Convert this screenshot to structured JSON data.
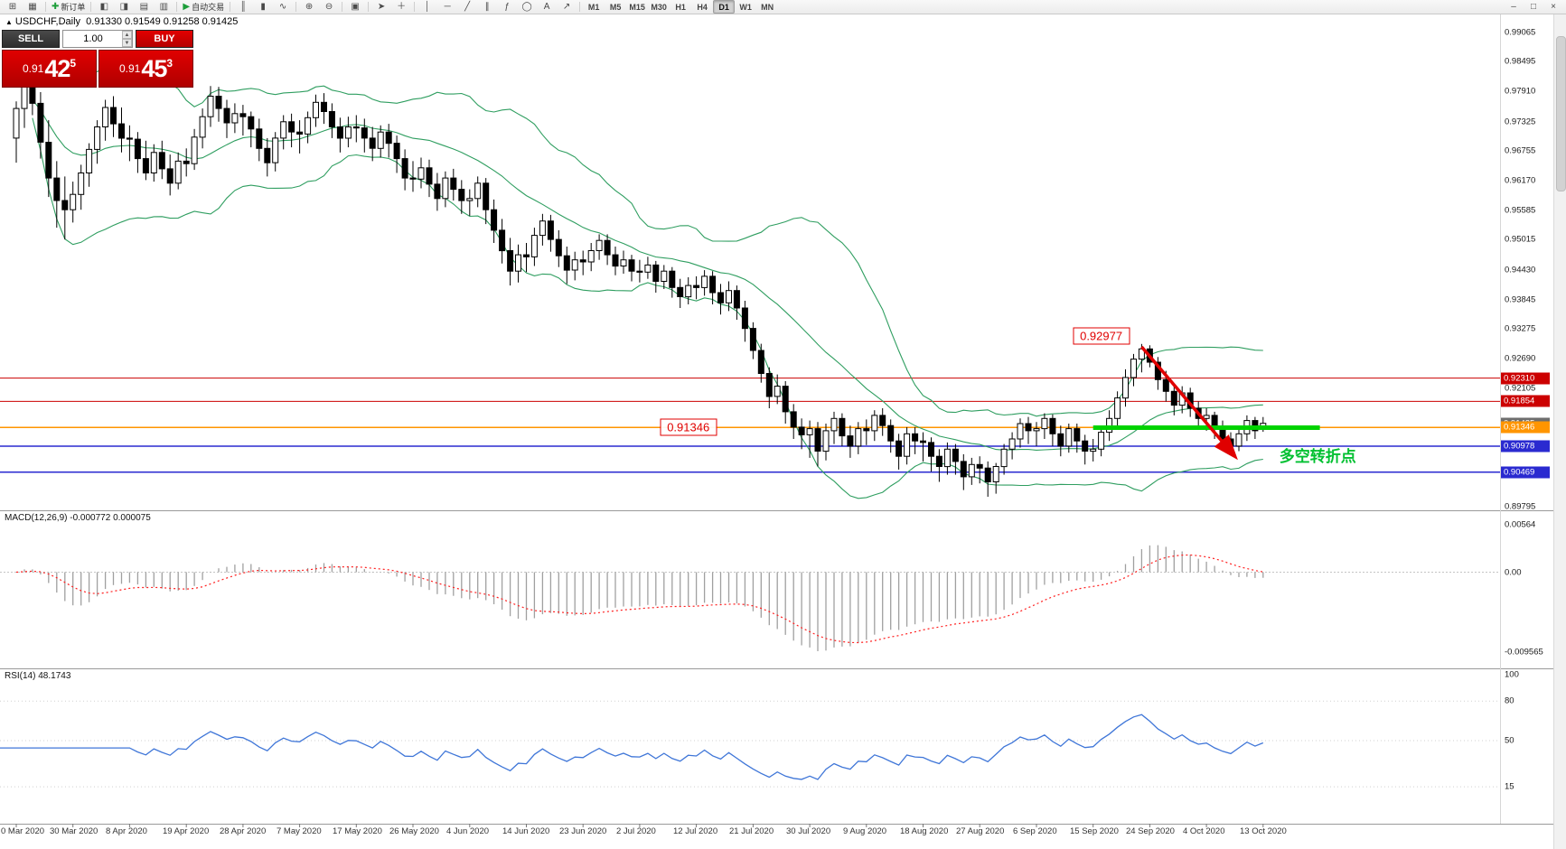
{
  "toolbar": {
    "new_order_label": "新订单",
    "autotrading_label": "自动交易",
    "timeframes": [
      "M1",
      "M5",
      "M15",
      "M30",
      "H1",
      "H4",
      "D1",
      "W1",
      "MN"
    ],
    "active_timeframe": "D1",
    "items": [
      {
        "t": "icon",
        "n": "new-chart-button",
        "g": "⊞"
      },
      {
        "t": "icon",
        "n": "profiles-button",
        "g": "▦"
      },
      {
        "t": "sep"
      },
      {
        "t": "textbtn",
        "n": "new-order-button",
        "g": "✚",
        "label_key": "new_order_label",
        "gcolor": "#1d9e3a"
      },
      {
        "t": "sep"
      },
      {
        "t": "icon",
        "n": "market-watch-button",
        "g": "◧"
      },
      {
        "t": "icon",
        "n": "data-window-button",
        "g": "◨"
      },
      {
        "t": "icon",
        "n": "navigator-button",
        "g": "▤"
      },
      {
        "t": "icon",
        "n": "terminal-button",
        "g": "▥"
      },
      {
        "t": "sep"
      },
      {
        "t": "textbtn",
        "n": "autotrading-button",
        "g": "▶",
        "label_key": "autotrading_label",
        "gcolor": "#1d9e3a"
      },
      {
        "t": "sep"
      },
      {
        "t": "icon",
        "n": "bar-chart-button",
        "g": "║"
      },
      {
        "t": "icon",
        "n": "candlestick-chart-button",
        "g": "▮"
      },
      {
        "t": "icon",
        "n": "line-chart-button",
        "g": "∿"
      },
      {
        "t": "sep"
      },
      {
        "t": "icon",
        "n": "zoom-in-button",
        "g": "⊕"
      },
      {
        "t": "icon",
        "n": "zoom-out-button",
        "g": "⊖"
      },
      {
        "t": "sep"
      },
      {
        "t": "icon",
        "n": "tile-windows-button",
        "g": "▣"
      },
      {
        "t": "sep"
      },
      {
        "t": "icon",
        "n": "cursor-button",
        "g": "➤"
      },
      {
        "t": "icon",
        "n": "crosshair-button",
        "g": "＋"
      },
      {
        "t": "sep"
      },
      {
        "t": "icon",
        "n": "vertical-line-button",
        "g": "│"
      },
      {
        "t": "icon",
        "n": "horizontal-line-button",
        "g": "─"
      },
      {
        "t": "icon",
        "n": "trendline-button",
        "g": "╱"
      },
      {
        "t": "icon",
        "n": "channel-button",
        "g": "∥"
      },
      {
        "t": "icon",
        "n": "fibonacci-button",
        "g": "ƒ"
      },
      {
        "t": "icon",
        "n": "shapes-button",
        "g": "◯"
      },
      {
        "t": "icon",
        "n": "text-tool-button",
        "g": "A"
      },
      {
        "t": "icon",
        "n": "arrows-tool-button",
        "g": "↗"
      },
      {
        "t": "sep"
      },
      {
        "t": "timeframes"
      },
      {
        "t": "spacer"
      },
      {
        "t": "icon",
        "n": "minimize-button",
        "g": "–"
      },
      {
        "t": "icon",
        "n": "restore-button",
        "g": "□"
      },
      {
        "t": "icon",
        "n": "close-button",
        "g": "×"
      }
    ]
  },
  "legend": {
    "symbol": "USDCHF,Daily",
    "ohlc": "0.91330 0.91549 0.91258 0.91425"
  },
  "one_click": {
    "sell_label": "SELL",
    "buy_label": "BUY",
    "volume": "1.00",
    "sell": {
      "prefix": "0.91",
      "main": "42",
      "pip": "5"
    },
    "buy": {
      "prefix": "0.91",
      "main": "45",
      "pip": "3"
    }
  },
  "chart_data": {
    "type": "candlestick",
    "symbol": "USDCHF",
    "period": "Daily",
    "ohlc_display": {
      "open": "0.91330",
      "high": "0.91549",
      "low": "0.91258",
      "close": "0.91425"
    },
    "dates": [
      "0 Mar 2020",
      "30 Mar 2020",
      "8 Apr 2020",
      "19 Apr 2020",
      "28 Apr 2020",
      "7 May 2020",
      "17 May 2020",
      "26 May 2020",
      "4 Jun 2020",
      "14 Jun 2020",
      "23 Jun 2020",
      "2 Jul 2020",
      "12 Jul 2020",
      "21 Jul 2020",
      "30 Jul 2020",
      "9 Aug 2020",
      "18 Aug 2020",
      "27 Aug 2020",
      "6 Sep 2020",
      "15 Sep 2020",
      "24 Sep 2020",
      "4 Oct 2020",
      "13 Oct 2020"
    ],
    "candles_per_label": 7,
    "candles": [
      [
        0.97,
        0.9772,
        0.9652,
        0.9758
      ],
      [
        0.9758,
        0.982,
        0.972,
        0.98
      ],
      [
        0.98,
        0.9822,
        0.9745,
        0.9768
      ],
      [
        0.9768,
        0.979,
        0.966,
        0.9692
      ],
      [
        0.9692,
        0.9735,
        0.9585,
        0.9622
      ],
      [
        0.9622,
        0.9655,
        0.9525,
        0.9578
      ],
      [
        0.9578,
        0.9625,
        0.9502,
        0.956
      ],
      [
        0.956,
        0.9615,
        0.9535,
        0.959
      ],
      [
        0.959,
        0.9648,
        0.956,
        0.9632
      ],
      [
        0.9632,
        0.969,
        0.9605,
        0.9678
      ],
      [
        0.9678,
        0.9735,
        0.965,
        0.9722
      ],
      [
        0.9722,
        0.9775,
        0.9695,
        0.976
      ],
      [
        0.976,
        0.9782,
        0.9702,
        0.9728
      ],
      [
        0.9728,
        0.976,
        0.9672,
        0.97
      ],
      [
        0.97,
        0.9725,
        0.9655,
        0.9698
      ],
      [
        0.9698,
        0.9712,
        0.9632,
        0.966
      ],
      [
        0.966,
        0.9695,
        0.9618,
        0.9632
      ],
      [
        0.9632,
        0.9688,
        0.9615,
        0.9672
      ],
      [
        0.9672,
        0.9695,
        0.962,
        0.964
      ],
      [
        0.964,
        0.9668,
        0.9588,
        0.9612
      ],
      [
        0.9612,
        0.9672,
        0.96,
        0.9655
      ],
      [
        0.9655,
        0.968,
        0.9625,
        0.965
      ],
      [
        0.965,
        0.9718,
        0.9638,
        0.9702
      ],
      [
        0.9702,
        0.9758,
        0.968,
        0.9742
      ],
      [
        0.9742,
        0.9802,
        0.9722,
        0.9782
      ],
      [
        0.9782,
        0.98,
        0.9732,
        0.9758
      ],
      [
        0.9758,
        0.9775,
        0.97,
        0.973
      ],
      [
        0.973,
        0.9768,
        0.971,
        0.9748
      ],
      [
        0.9748,
        0.9765,
        0.9705,
        0.9742
      ],
      [
        0.9742,
        0.9752,
        0.9682,
        0.9718
      ],
      [
        0.9718,
        0.9738,
        0.9655,
        0.968
      ],
      [
        0.968,
        0.97,
        0.9625,
        0.9652
      ],
      [
        0.9652,
        0.9712,
        0.9635,
        0.97
      ],
      [
        0.97,
        0.9745,
        0.9678,
        0.9732
      ],
      [
        0.9732,
        0.9748,
        0.9682,
        0.9712
      ],
      [
        0.9712,
        0.9735,
        0.967,
        0.9708
      ],
      [
        0.9708,
        0.9752,
        0.969,
        0.974
      ],
      [
        0.974,
        0.9785,
        0.9722,
        0.977
      ],
      [
        0.977,
        0.9788,
        0.9728,
        0.9752
      ],
      [
        0.9752,
        0.9768,
        0.97,
        0.9722
      ],
      [
        0.9722,
        0.974,
        0.9672,
        0.97
      ],
      [
        0.97,
        0.9742,
        0.9682,
        0.9722
      ],
      [
        0.9722,
        0.9745,
        0.9692,
        0.972
      ],
      [
        0.972,
        0.9738,
        0.9672,
        0.97
      ],
      [
        0.97,
        0.9722,
        0.9655,
        0.968
      ],
      [
        0.968,
        0.9725,
        0.9662,
        0.9712
      ],
      [
        0.9712,
        0.9728,
        0.9662,
        0.969
      ],
      [
        0.969,
        0.9705,
        0.9632,
        0.966
      ],
      [
        0.966,
        0.9678,
        0.9598,
        0.9622
      ],
      [
        0.9622,
        0.9655,
        0.9595,
        0.962
      ],
      [
        0.962,
        0.9662,
        0.9602,
        0.9642
      ],
      [
        0.9642,
        0.9658,
        0.9585,
        0.961
      ],
      [
        0.961,
        0.9632,
        0.9558,
        0.9582
      ],
      [
        0.9582,
        0.9635,
        0.9565,
        0.9622
      ],
      [
        0.9622,
        0.964,
        0.9578,
        0.96
      ],
      [
        0.96,
        0.9618,
        0.9552,
        0.9578
      ],
      [
        0.9578,
        0.96,
        0.9548,
        0.9582
      ],
      [
        0.9582,
        0.9625,
        0.9565,
        0.9612
      ],
      [
        0.9612,
        0.9622,
        0.9532,
        0.956
      ],
      [
        0.956,
        0.958,
        0.9495,
        0.952
      ],
      [
        0.952,
        0.9542,
        0.9455,
        0.948
      ],
      [
        0.948,
        0.9505,
        0.9412,
        0.944
      ],
      [
        0.944,
        0.9492,
        0.9418,
        0.9472
      ],
      [
        0.9472,
        0.9495,
        0.9438,
        0.9468
      ],
      [
        0.9468,
        0.9525,
        0.945,
        0.951
      ],
      [
        0.951,
        0.9552,
        0.949,
        0.9538
      ],
      [
        0.9538,
        0.955,
        0.9478,
        0.9502
      ],
      [
        0.9502,
        0.952,
        0.9448,
        0.947
      ],
      [
        0.947,
        0.9488,
        0.9415,
        0.9442
      ],
      [
        0.9442,
        0.9478,
        0.9422,
        0.9462
      ],
      [
        0.9462,
        0.948,
        0.9432,
        0.9458
      ],
      [
        0.9458,
        0.9495,
        0.944,
        0.948
      ],
      [
        0.948,
        0.9512,
        0.9462,
        0.95
      ],
      [
        0.95,
        0.9512,
        0.9452,
        0.9472
      ],
      [
        0.9472,
        0.9488,
        0.9432,
        0.945
      ],
      [
        0.945,
        0.948,
        0.9435,
        0.9462
      ],
      [
        0.9462,
        0.9472,
        0.942,
        0.944
      ],
      [
        0.944,
        0.9462,
        0.9418,
        0.9438
      ],
      [
        0.9438,
        0.9468,
        0.9425,
        0.9452
      ],
      [
        0.9452,
        0.946,
        0.9398,
        0.942
      ],
      [
        0.942,
        0.9452,
        0.9405,
        0.944
      ],
      [
        0.944,
        0.9448,
        0.9388,
        0.9408
      ],
      [
        0.9408,
        0.9425,
        0.9368,
        0.939
      ],
      [
        0.939,
        0.9428,
        0.9375,
        0.9412
      ],
      [
        0.9412,
        0.943,
        0.9385,
        0.9408
      ],
      [
        0.9408,
        0.9442,
        0.9392,
        0.943
      ],
      [
        0.943,
        0.944,
        0.9375,
        0.9398
      ],
      [
        0.9398,
        0.9415,
        0.9355,
        0.9378
      ],
      [
        0.9378,
        0.942,
        0.9362,
        0.9402
      ],
      [
        0.9402,
        0.9412,
        0.9345,
        0.9368
      ],
      [
        0.9368,
        0.9382,
        0.9302,
        0.9328
      ],
      [
        0.9328,
        0.934,
        0.9268,
        0.9285
      ],
      [
        0.9285,
        0.9298,
        0.9222,
        0.924
      ],
      [
        0.924,
        0.9252,
        0.9172,
        0.9195
      ],
      [
        0.9195,
        0.9238,
        0.918,
        0.9215
      ],
      [
        0.9215,
        0.9225,
        0.9142,
        0.9165
      ],
      [
        0.9165,
        0.918,
        0.9112,
        0.9135
      ],
      [
        0.9135,
        0.9152,
        0.9092,
        0.912
      ],
      [
        0.912,
        0.9148,
        0.9075,
        0.9132
      ],
      [
        0.9132,
        0.9145,
        0.9058,
        0.9088
      ],
      [
        0.9088,
        0.9142,
        0.907,
        0.9128
      ],
      [
        0.9128,
        0.9165,
        0.9102,
        0.9152
      ],
      [
        0.9152,
        0.9162,
        0.9098,
        0.9118
      ],
      [
        0.9118,
        0.9138,
        0.9075,
        0.9098
      ],
      [
        0.9098,
        0.9145,
        0.9082,
        0.9132
      ],
      [
        0.9132,
        0.915,
        0.91,
        0.9128
      ],
      [
        0.9128,
        0.9168,
        0.9108,
        0.9158
      ],
      [
        0.9158,
        0.9172,
        0.9118,
        0.9138
      ],
      [
        0.9138,
        0.915,
        0.9085,
        0.9108
      ],
      [
        0.9108,
        0.9122,
        0.9052,
        0.9078
      ],
      [
        0.9078,
        0.9135,
        0.9062,
        0.9122
      ],
      [
        0.9122,
        0.9135,
        0.9082,
        0.9108
      ],
      [
        0.9108,
        0.9125,
        0.9068,
        0.9105
      ],
      [
        0.9105,
        0.9115,
        0.9048,
        0.9078
      ],
      [
        0.9078,
        0.9092,
        0.9028,
        0.9058
      ],
      [
        0.9058,
        0.9105,
        0.9042,
        0.9092
      ],
      [
        0.9092,
        0.9102,
        0.9042,
        0.9068
      ],
      [
        0.9068,
        0.9082,
        0.9012,
        0.9038
      ],
      [
        0.9038,
        0.9075,
        0.9022,
        0.9062
      ],
      [
        0.9062,
        0.9078,
        0.9025,
        0.9055
      ],
      [
        0.9055,
        0.9068,
        0.8999,
        0.9028
      ],
      [
        0.9028,
        0.9065,
        0.9005,
        0.9058
      ],
      [
        0.9058,
        0.9102,
        0.9042,
        0.9092
      ],
      [
        0.9092,
        0.9125,
        0.9072,
        0.9112
      ],
      [
        0.9112,
        0.9152,
        0.9095,
        0.9142
      ],
      [
        0.9142,
        0.9155,
        0.9102,
        0.9128
      ],
      [
        0.9128,
        0.9145,
        0.9098,
        0.9132
      ],
      [
        0.9132,
        0.9162,
        0.9112,
        0.9152
      ],
      [
        0.9152,
        0.916,
        0.9098,
        0.9122
      ],
      [
        0.9122,
        0.9138,
        0.9078,
        0.9098
      ],
      [
        0.9098,
        0.9142,
        0.9085,
        0.9132
      ],
      [
        0.9132,
        0.9142,
        0.9085,
        0.9108
      ],
      [
        0.9108,
        0.912,
        0.9062,
        0.9088
      ],
      [
        0.9088,
        0.9112,
        0.9068,
        0.9092
      ],
      [
        0.9092,
        0.9138,
        0.9078,
        0.9125
      ],
      [
        0.9125,
        0.9168,
        0.9108,
        0.9152
      ],
      [
        0.9152,
        0.9205,
        0.9138,
        0.9192
      ],
      [
        0.9192,
        0.9248,
        0.9175,
        0.9232
      ],
      [
        0.9232,
        0.9278,
        0.9215,
        0.9268
      ],
      [
        0.9268,
        0.92977,
        0.9242,
        0.9288
      ],
      [
        0.9288,
        0.9295,
        0.9252,
        0.9262
      ],
      [
        0.9262,
        0.9272,
        0.9208,
        0.9228
      ],
      [
        0.9228,
        0.9245,
        0.9185,
        0.9205
      ],
      [
        0.9205,
        0.9218,
        0.9158,
        0.9178
      ],
      [
        0.9178,
        0.9215,
        0.9162,
        0.9202
      ],
      [
        0.9202,
        0.9212,
        0.9155,
        0.9172
      ],
      [
        0.9172,
        0.9185,
        0.9132,
        0.9152
      ],
      [
        0.9152,
        0.9172,
        0.9128,
        0.9158
      ],
      [
        0.9158,
        0.9165,
        0.9112,
        0.9132
      ],
      [
        0.9132,
        0.9148,
        0.9095,
        0.9112
      ],
      [
        0.9112,
        0.9125,
        0.9085,
        0.9098
      ],
      [
        0.9098,
        0.9135,
        0.9088,
        0.9122
      ],
      [
        0.9122,
        0.9158,
        0.9108,
        0.9148
      ],
      [
        0.9148,
        0.9155,
        0.9112,
        0.9128
      ],
      [
        0.9133,
        0.91549,
        0.91258,
        0.91425
      ]
    ],
    "indicators": {
      "bollinger_period": 20,
      "bollinger_dev": 2,
      "macd_params": [
        12,
        26,
        9
      ],
      "rsi_period": 14
    },
    "price_axis": {
      "ticks": [
        "0.99065",
        "0.98495",
        "0.97910",
        "0.97325",
        "0.96755",
        "0.96170",
        "0.95585",
        "0.95015",
        "0.94430",
        "0.93845",
        "0.93275",
        "0.92690",
        "0.92105",
        "0.89795"
      ],
      "tags": [
        {
          "text": "0.92310",
          "price": 0.9231,
          "bg": "#cc0000"
        },
        {
          "text": "0.91854",
          "price": 0.91854,
          "bg": "#cc0000"
        },
        {
          "text": "0.91425",
          "price": 0.91425,
          "bg": "#6e6e6e"
        },
        {
          "text": "0.91346",
          "price": 0.91346,
          "bg": "#ff9500"
        },
        {
          "text": "0.90978",
          "price": 0.90978,
          "bg": "#2a2ad0"
        },
        {
          "text": "0.90469",
          "price": 0.90469,
          "bg": "#2a2ad0"
        }
      ]
    },
    "macd_legend": "MACD(12,26,9) -0.000772 0.000075",
    "rsi_legend": "RSI(14) 48.1743",
    "macd_axis": [
      "0.00564",
      "0.00",
      "-0.009565"
    ],
    "rsi_axis": [
      "100",
      "80",
      "50",
      "15"
    ],
    "overlays": {
      "hlines": [
        {
          "price": 0.9231,
          "color": "#cc0000",
          "w": 1
        },
        {
          "price": 0.91854,
          "color": "#cc0000",
          "w": 1
        },
        {
          "price": 0.91346,
          "color": "#ff9500",
          "w": 1.5
        },
        {
          "price": 0.90978,
          "color": "#2a2ad0",
          "w": 1.5
        },
        {
          "price": 0.90469,
          "color": "#2a2ad0",
          "w": 1.5
        }
      ],
      "support_line": {
        "price": 0.9134,
        "from_index": 133,
        "to_index": 161,
        "color": "#00d300",
        "width": 5
      },
      "arrow": {
        "from": {
          "index": 139,
          "price": 0.9292
        },
        "to": {
          "index": 150.5,
          "price": 0.9078
        },
        "color": "#e00000"
      },
      "callouts": [
        {
          "text": "0.92977",
          "index": 134,
          "price": 0.9313
        },
        {
          "text": "0.91346",
          "index": 83,
          "price": 0.91346
        }
      ],
      "note": {
        "text": "多空转折点",
        "index": 156,
        "price": 0.9085,
        "color": "#00c030"
      }
    },
    "colors": {
      "band": "#2f9e60",
      "up_body": "#ffffff",
      "down_body": "#000000",
      "outline": "#000000",
      "macd_hist": "#a0a0a0",
      "macd_signal": "#ff2020",
      "rsi_line": "#3f76d8"
    }
  }
}
